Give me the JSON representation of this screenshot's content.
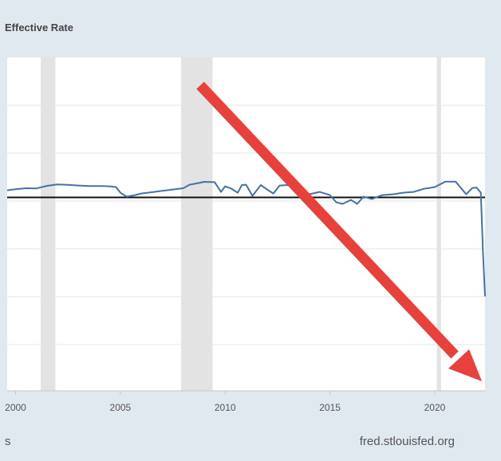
{
  "chart_data": {
    "type": "line",
    "title": "Effective Rate",
    "xlabel": "",
    "ylabel": "",
    "xlim": [
      1999.6,
      2022.4
    ],
    "x_ticks": [
      "2000",
      "2005",
      "2010",
      "2015",
      "2020"
    ],
    "grid": "horizontal",
    "recessions": [
      [
        2001.2,
        2001.9
      ],
      [
        2007.9,
        2009.4
      ],
      [
        2020.1,
        2020.3
      ]
    ],
    "reference_line_y_fraction": 0.42,
    "series": [
      {
        "color": "#4572a7",
        "x": [
          1999.6,
          2000.0,
          2000.5,
          2001.0,
          2001.5,
          2002.0,
          2002.5,
          2003.0,
          2003.5,
          2004.0,
          2004.5,
          2004.8,
          2005.0,
          2005.3,
          2005.7,
          2006.0,
          2006.5,
          2007.0,
          2007.5,
          2008.0,
          2008.3,
          2008.7,
          2009.0,
          2009.5,
          2009.8,
          2010.0,
          2010.3,
          2010.6,
          2010.8,
          2011.0,
          2011.3,
          2011.7,
          2012.0,
          2012.3,
          2012.6,
          2013.0,
          2013.5,
          2014.0,
          2014.5,
          2015.0,
          2015.3,
          2015.6,
          2016.0,
          2016.3,
          2016.6,
          2017.0,
          2017.5,
          2018.0,
          2018.5,
          2019.0,
          2019.5,
          2020.0,
          2020.5,
          2021.0,
          2021.5,
          2021.8,
          2022.0,
          2022.2,
          2022.3,
          2022.4
        ],
        "y": [
          0.45,
          0.52,
          0.58,
          0.57,
          0.73,
          0.82,
          0.79,
          0.75,
          0.72,
          0.72,
          0.7,
          0.65,
          0.3,
          0.05,
          0.15,
          0.25,
          0.33,
          0.42,
          0.5,
          0.58,
          0.8,
          0.9,
          0.98,
          0.96,
          0.35,
          0.7,
          0.55,
          0.3,
          0.78,
          0.8,
          0.1,
          0.78,
          0.5,
          0.25,
          0.75,
          0.78,
          0.6,
          0.2,
          0.35,
          0.15,
          -0.3,
          -0.4,
          -0.15,
          -0.4,
          0.05,
          -0.1,
          0.15,
          0.2,
          0.3,
          0.35,
          0.55,
          0.65,
          0.99,
          0.99,
          0.2,
          0.6,
          0.62,
          0.3,
          -3.4,
          -6.2
        ]
      }
    ]
  },
  "footer": {
    "left_text": "s",
    "right_text": "fred.stlouisfed.org"
  },
  "annotation": {
    "arrow_color": "#e8403a"
  }
}
